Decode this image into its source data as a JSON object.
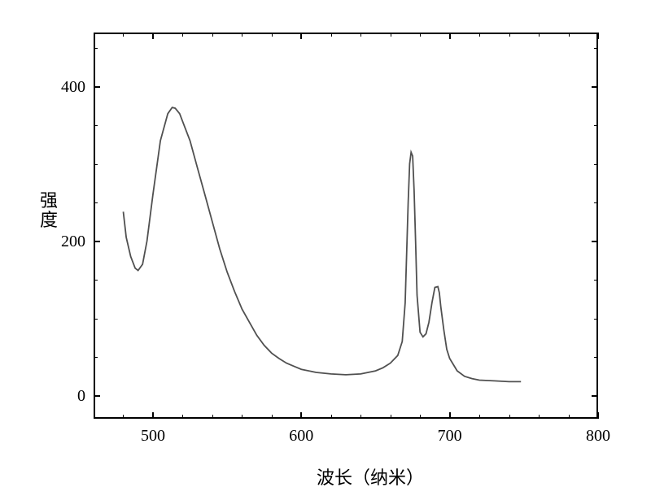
{
  "chart": {
    "type": "line",
    "xlabel": "波长（纳米）",
    "ylabel": "强度",
    "label_fontsize": 22,
    "tick_fontsize": 20,
    "background_color": "#ffffff",
    "border_color": "#000000",
    "line_color": "#505050",
    "line_width": 1.8,
    "xlim": [
      460,
      800
    ],
    "ylim": [
      -30,
      470
    ],
    "xtick_major": [
      500,
      600,
      700,
      800
    ],
    "xtick_minor": [
      480,
      520,
      540,
      560,
      580,
      620,
      640,
      660,
      680,
      720,
      740,
      760,
      780
    ],
    "ytick_major": [
      0,
      200,
      400
    ],
    "ytick_minor": [
      50,
      100,
      150,
      250,
      300,
      350,
      450
    ],
    "data_x": [
      480,
      482,
      485,
      488,
      490,
      493,
      496,
      500,
      505,
      510,
      513,
      515,
      518,
      520,
      525,
      530,
      535,
      540,
      545,
      550,
      555,
      560,
      565,
      570,
      575,
      580,
      585,
      590,
      595,
      600,
      610,
      620,
      630,
      640,
      650,
      655,
      660,
      665,
      668,
      670,
      672,
      673,
      674,
      675,
      676,
      677,
      678,
      680,
      682,
      684,
      686,
      688,
      690,
      692,
      693,
      694,
      696,
      698,
      700,
      705,
      710,
      715,
      720,
      730,
      740,
      748
    ],
    "data_y": [
      238,
      205,
      180,
      165,
      162,
      170,
      200,
      260,
      330,
      365,
      373,
      372,
      365,
      355,
      330,
      295,
      260,
      225,
      190,
      160,
      135,
      112,
      95,
      78,
      65,
      55,
      48,
      42,
      38,
      34,
      30,
      28,
      27,
      28,
      32,
      36,
      42,
      52,
      70,
      120,
      250,
      300,
      315,
      310,
      265,
      200,
      130,
      82,
      76,
      80,
      95,
      120,
      140,
      141,
      133,
      115,
      85,
      60,
      48,
      32,
      25,
      22,
      20,
      19,
      18,
      18
    ]
  }
}
